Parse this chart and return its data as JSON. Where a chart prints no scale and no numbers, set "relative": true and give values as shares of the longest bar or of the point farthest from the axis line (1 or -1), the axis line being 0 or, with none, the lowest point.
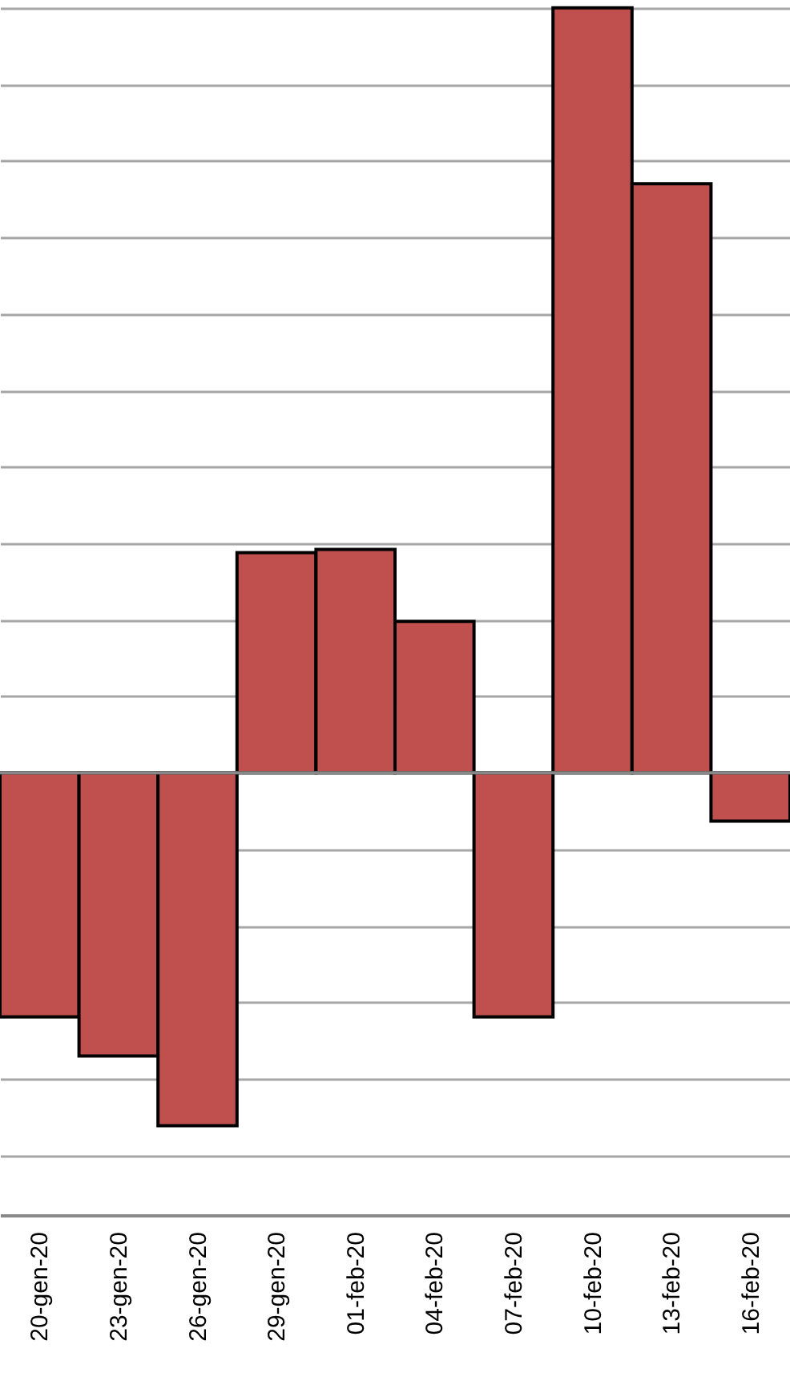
{
  "chart_data": {
    "type": "bar",
    "relative": true,
    "grid": "y",
    "color": "#c0504d",
    "categories": [
      "20-gen-20",
      "23-gen-20",
      "26-gen-20",
      "29-gen-20",
      "01-feb-20",
      "04-feb-20",
      "07-feb-20",
      "10-feb-20",
      "13-feb-20",
      "16-feb-20"
    ],
    "values": [
      -0.319,
      -0.37,
      -0.461,
      0.288,
      0.292,
      0.198,
      -0.319,
      1,
      0.77,
      -0.063
    ]
  }
}
